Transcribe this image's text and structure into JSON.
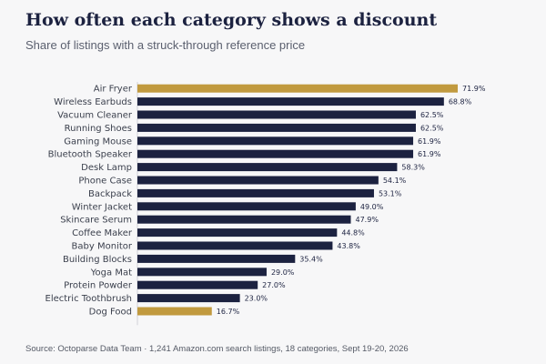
{
  "header": {
    "title": "How often each category shows a discount",
    "subtitle": "Share of listings with a struck-through reference price"
  },
  "footer": {
    "source": "Source: Octoparse Data Team · 1,241 Amazon.com search listings, 18 categories, Sept 19-20, 2026"
  },
  "colors": {
    "default_bar": "#1c2240",
    "highlight_bar": "#c19a3f",
    "axis_line": "#d0d2d8"
  },
  "chart_data": {
    "type": "bar",
    "orientation": "horizontal",
    "title": "How often each category shows a discount",
    "subtitle": "Share of listings with a struck-through reference price",
    "categories": [
      "Air Fryer",
      "Wireless Earbuds",
      "Vacuum Cleaner",
      "Running Shoes",
      "Gaming Mouse",
      "Bluetooth Speaker",
      "Desk Lamp",
      "Phone Case",
      "Backpack",
      "Winter Jacket",
      "Skincare Serum",
      "Coffee Maker",
      "Baby Monitor",
      "Building Blocks",
      "Yoga Mat",
      "Protein Powder",
      "Electric Toothbrush",
      "Dog Food"
    ],
    "values": [
      71.9,
      68.8,
      62.5,
      62.5,
      61.9,
      61.9,
      58.3,
      54.1,
      53.1,
      49.0,
      47.9,
      44.8,
      43.8,
      35.4,
      29.0,
      27.0,
      23.0,
      16.7
    ],
    "value_labels": [
      "71.9%",
      "68.8%",
      "62.5%",
      "62.5%",
      "61.9%",
      "61.9%",
      "58.3%",
      "54.1%",
      "53.1%",
      "49.0%",
      "47.9%",
      "44.8%",
      "43.8%",
      "35.4%",
      "29.0%",
      "27.0%",
      "23.0%",
      "16.7%"
    ],
    "highlighted": [
      "Air Fryer",
      "Dog Food"
    ],
    "xlim": [
      0,
      71.9
    ],
    "grid": false
  }
}
